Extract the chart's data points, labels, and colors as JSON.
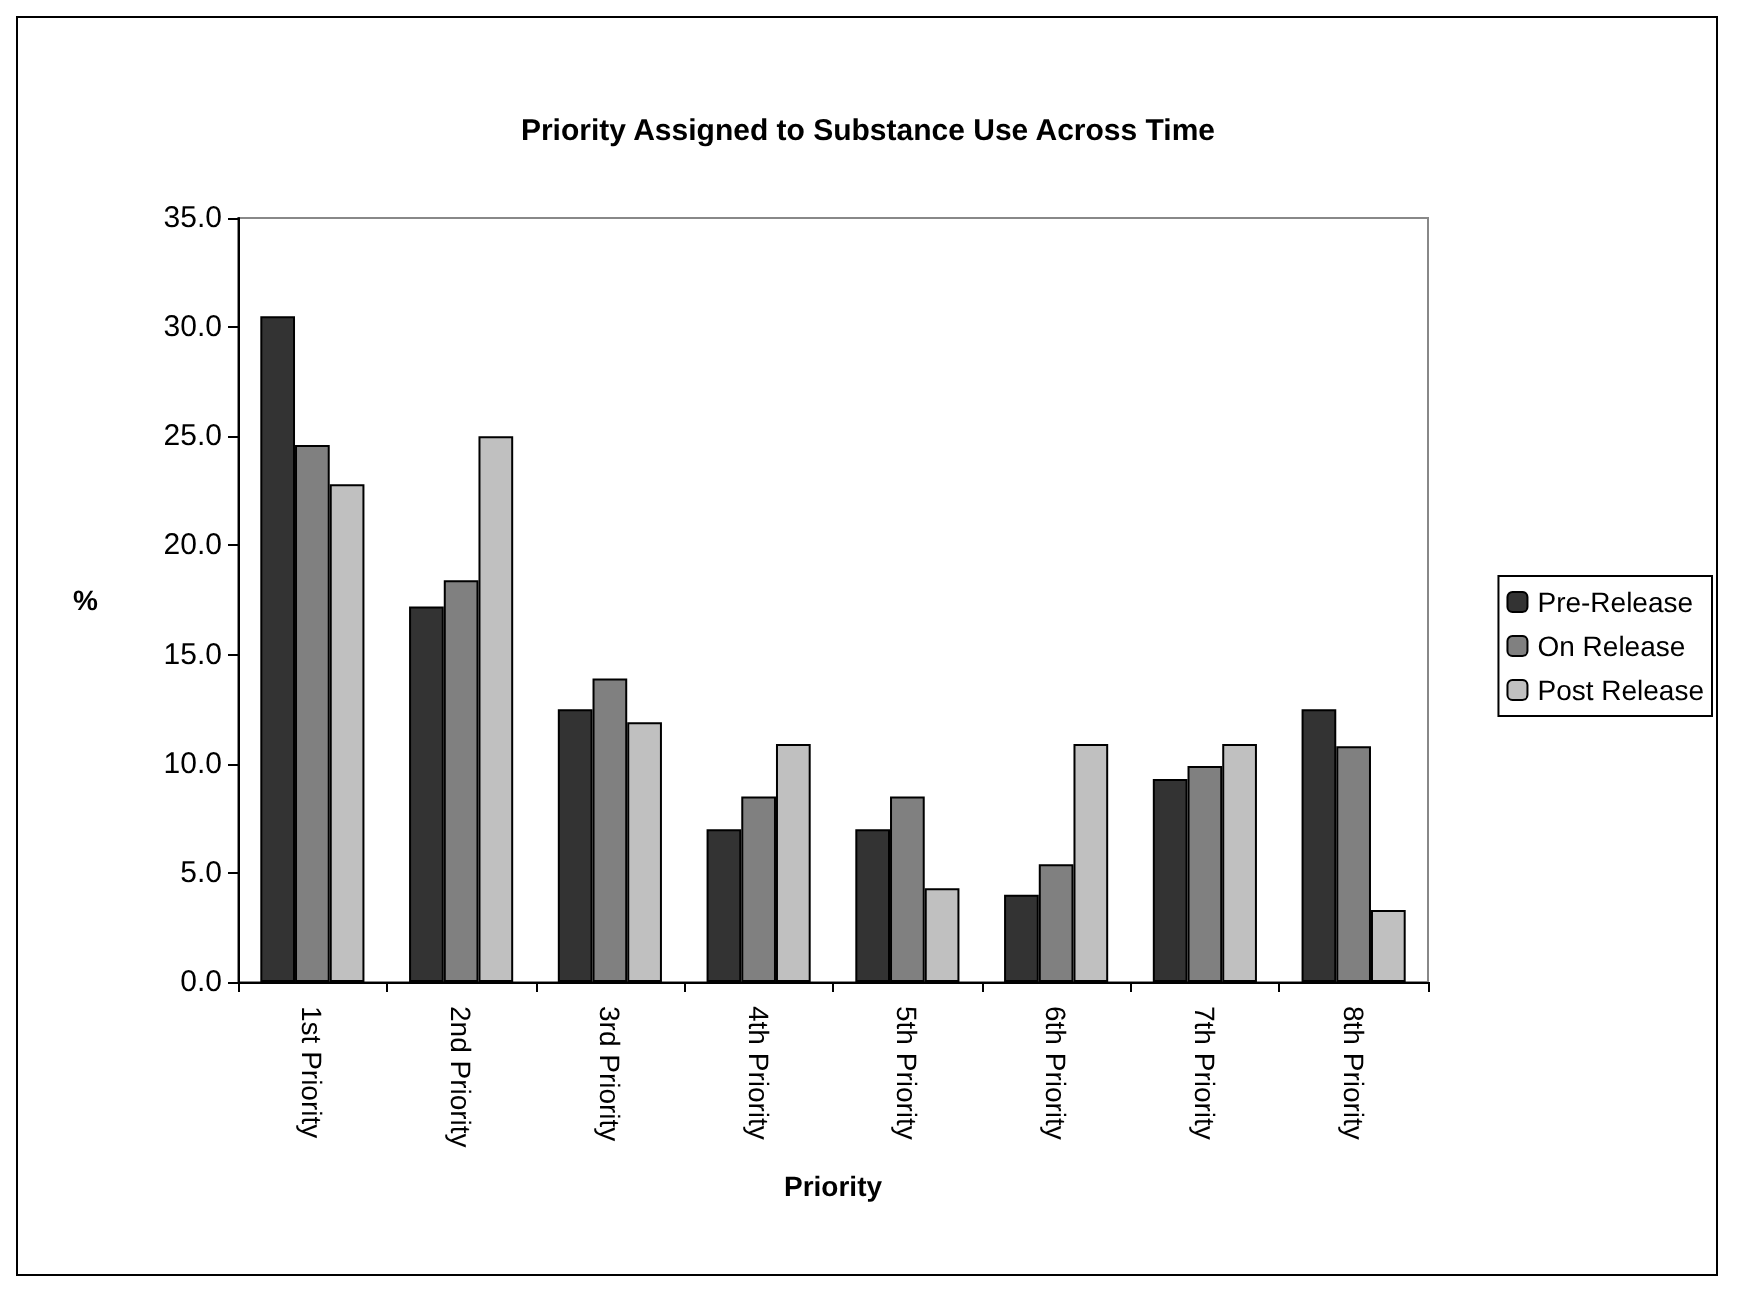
{
  "chart_data": {
    "type": "bar",
    "title": "Priority Assigned to Substance Use Across Time",
    "xlabel": "Priority",
    "ylabel": "%",
    "categories": [
      "1st Priority",
      "2nd Priority",
      "3rd Priority",
      "4th Priority",
      "5th Priority",
      "6th Priority",
      "7th Priority",
      "8th Priority"
    ],
    "series": [
      {
        "name": "Pre-Release",
        "color": "#333333",
        "values": [
          30.5,
          17.2,
          12.5,
          7.0,
          7.0,
          4.0,
          9.3,
          12.5
        ]
      },
      {
        "name": "On Release",
        "color": "#808080",
        "values": [
          24.6,
          18.4,
          13.9,
          8.5,
          8.5,
          5.4,
          9.9,
          10.8
        ]
      },
      {
        "name": "Post Release",
        "color": "#c0c0c0",
        "values": [
          22.8,
          25.0,
          11.9,
          10.9,
          4.3,
          10.9,
          10.9,
          3.3
        ]
      }
    ],
    "ylim": [
      0,
      35
    ],
    "yticks": [
      {
        "value": 0,
        "label": "0.0"
      },
      {
        "value": 5,
        "label": "5.0"
      },
      {
        "value": 10,
        "label": "10.0"
      },
      {
        "value": 15,
        "label": "15.0"
      },
      {
        "value": 20,
        "label": "20.0"
      },
      {
        "value": 25,
        "label": "25.0"
      },
      {
        "value": 30,
        "label": "30.0"
      },
      {
        "value": 35,
        "label": "35.0"
      }
    ],
    "grid": false,
    "legend": "right"
  }
}
